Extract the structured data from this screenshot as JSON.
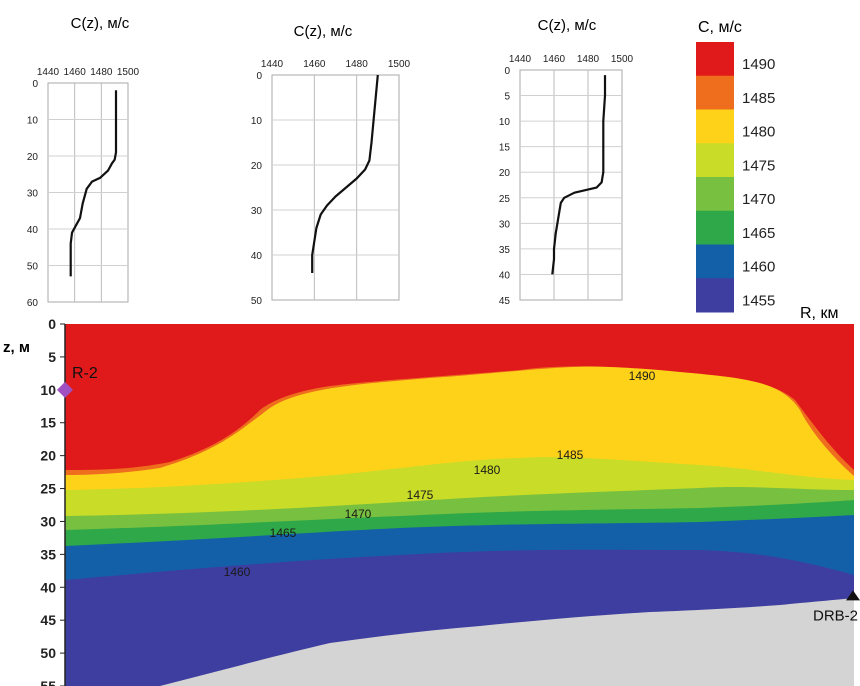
{
  "chart_data": [
    {
      "type": "line",
      "title": "C(z), м/с",
      "xlim": [
        1440,
        1500
      ],
      "x_ticks": [
        "1440",
        "1460",
        "1480",
        "1500"
      ],
      "ylim": [
        0,
        60
      ],
      "y_ticks": [
        "0",
        "10",
        "20",
        "30",
        "40",
        "50",
        "60"
      ],
      "grid": true,
      "series": [
        {
          "points": [
            [
              1491,
              2
            ],
            [
              1491,
              10
            ],
            [
              1491,
              19
            ],
            [
              1490,
              21
            ],
            [
              1488,
              22
            ],
            [
              1485,
              24
            ],
            [
              1479,
              26
            ],
            [
              1473,
              27
            ],
            [
              1469,
              29
            ],
            [
              1466,
              33
            ],
            [
              1464,
              37
            ],
            [
              1461,
              39
            ],
            [
              1458,
              41
            ],
            [
              1457,
              44
            ],
            [
              1457,
              53
            ]
          ]
        }
      ]
    },
    {
      "type": "line",
      "title": "C(z), м/с",
      "xlim": [
        1440,
        1500
      ],
      "x_ticks": [
        "1440",
        "1460",
        "1480",
        "1500"
      ],
      "ylim": [
        0,
        50
      ],
      "y_ticks": [
        "0",
        "10",
        "20",
        "30",
        "40",
        "50"
      ],
      "grid": true,
      "series": [
        {
          "points": [
            [
              1490,
              0
            ],
            [
              1489,
              5
            ],
            [
              1488,
              10
            ],
            [
              1487,
              15
            ],
            [
              1486,
              19
            ],
            [
              1484,
              21
            ],
            [
              1480,
              23
            ],
            [
              1475,
              25
            ],
            [
              1470,
              27
            ],
            [
              1466,
              29
            ],
            [
              1463,
              31
            ],
            [
              1461,
              34
            ],
            [
              1460,
              37
            ],
            [
              1459,
              40
            ],
            [
              1459,
              44
            ]
          ]
        }
      ]
    },
    {
      "type": "line",
      "title": "C(z), м/с",
      "xlim": [
        1440,
        1500
      ],
      "x_ticks": [
        "1440",
        "1460",
        "1480",
        "1500"
      ],
      "ylim": [
        0,
        45
      ],
      "y_ticks": [
        "0",
        "5",
        "10",
        "15",
        "20",
        "25",
        "30",
        "35",
        "40",
        "45"
      ],
      "grid": true,
      "series": [
        {
          "points": [
            [
              1490,
              1
            ],
            [
              1490,
              5
            ],
            [
              1489,
              10
            ],
            [
              1489,
              15
            ],
            [
              1489,
              20
            ],
            [
              1488,
              22
            ],
            [
              1485,
              23
            ],
            [
              1472,
              24
            ],
            [
              1466,
              25
            ],
            [
              1464,
              26
            ],
            [
              1463,
              28
            ],
            [
              1462,
              30
            ],
            [
              1461,
              32
            ],
            [
              1460,
              35
            ],
            [
              1460,
              37
            ],
            [
              1459,
              40
            ]
          ]
        }
      ]
    },
    {
      "type": "heatmap",
      "ylabel": "z, м",
      "xlabel": "R, км",
      "ylim": [
        0,
        55
      ],
      "y_ticks": [
        "0",
        "5",
        "10",
        "15",
        "20",
        "25",
        "30",
        "35",
        "40",
        "45",
        "50",
        "55"
      ],
      "source_label": "R-2",
      "receiver_label": "DRB-2",
      "source_depth": 10,
      "receiver_depth": 42,
      "contour_labels": [
        "1490",
        "1485",
        "1480",
        "1475",
        "1470",
        "1465",
        "1460"
      ],
      "colorbar": {
        "title": "C, м/с",
        "levels": [
          "1490",
          "1485",
          "1480",
          "1475",
          "1470",
          "1465",
          "1460",
          "1455"
        ],
        "colors": [
          "#e01a1a",
          "#ee6e1e",
          "#ffd21a",
          "#c8dc28",
          "#78c040",
          "#2ea848",
          "#1460a8",
          "#3e3ea0"
        ]
      }
    }
  ]
}
